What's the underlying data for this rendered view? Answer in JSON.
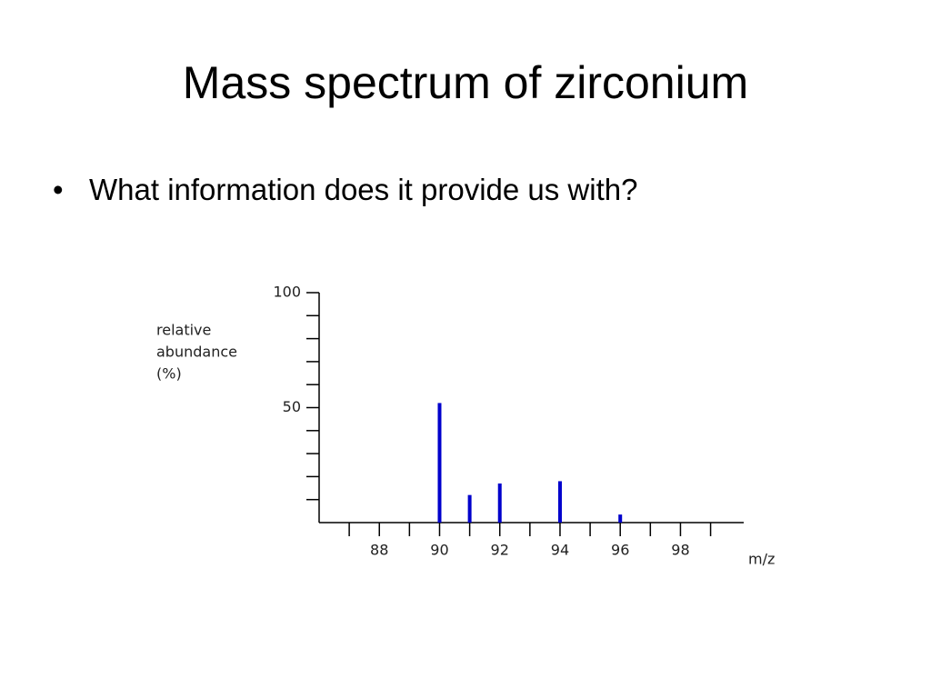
{
  "chart_data": {
    "type": "bar",
    "title": "Mass spectrum of zirconium",
    "bullets": [
      "What information does it provide us with?"
    ],
    "ylabel": [
      "relative",
      "abundance",
      "(%)"
    ],
    "xlabel": "m/z",
    "x": [
      90,
      91,
      92,
      94,
      96
    ],
    "values": [
      52,
      12,
      17,
      18,
      3.5
    ],
    "color": "#0000cc",
    "xlim": [
      86,
      100.1
    ],
    "ylim": [
      0,
      100
    ],
    "xticks": [
      88,
      90,
      92,
      94,
      96,
      98
    ],
    "xminor_ticks": [
      87,
      89,
      91,
      93,
      95,
      97,
      99
    ],
    "yticks": [
      50,
      100
    ],
    "yminor_ticks": [
      10,
      20,
      30,
      40,
      60,
      70,
      80,
      90
    ]
  }
}
